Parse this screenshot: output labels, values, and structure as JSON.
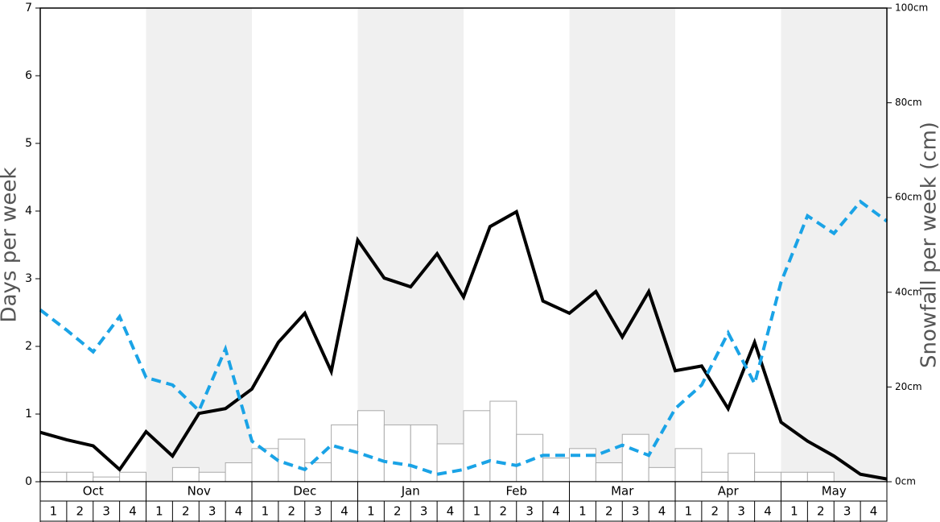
{
  "chart_data": {
    "type": "bar",
    "y_label": "Days per week",
    "y2_label": "Snowfall per week (cm)",
    "months": [
      "Oct",
      "Nov",
      "Dec",
      "Jan",
      "Feb",
      "Mar",
      "Apr",
      "May"
    ],
    "weeks": [
      "1",
      "2",
      "3",
      "4"
    ],
    "shaded_months": [
      false,
      true,
      false,
      true,
      false,
      true,
      false,
      true
    ],
    "ylim": [
      0,
      7
    ],
    "yticks": [
      0,
      1,
      2,
      3,
      4,
      5,
      6,
      7
    ],
    "y2lim": [
      0,
      100
    ],
    "y2ticks": [
      {
        "value": 0,
        "label": "0cm"
      },
      {
        "value": 20,
        "label": "20cm"
      },
      {
        "value": 40,
        "label": "40cm"
      },
      {
        "value": 60,
        "label": "60cm"
      },
      {
        "value": 80,
        "label": "80cm"
      },
      {
        "value": 100,
        "label": "100cm"
      }
    ],
    "series": [
      {
        "type": "bar",
        "axis": "y2",
        "color": "#ffffff",
        "values": [
          2,
          2,
          1,
          2,
          0,
          3,
          2,
          4,
          7,
          9,
          4,
          12,
          15,
          12,
          12,
          8,
          15,
          17,
          10,
          5,
          7,
          4,
          10,
          3,
          7,
          2,
          6,
          2,
          2,
          2,
          0,
          0
        ]
      },
      {
        "type": "line",
        "axis": "y",
        "color": "#000000",
        "dashed": false,
        "values": [
          0.73,
          0.62,
          0.53,
          0.18,
          0.74,
          0.38,
          1.01,
          1.08,
          1.37,
          2.06,
          2.49,
          1.63,
          3.57,
          3.01,
          2.88,
          3.37,
          2.73,
          3.77,
          3.99,
          2.67,
          2.49,
          2.81,
          2.14,
          2.81,
          1.64,
          1.71,
          1.08,
          2.06,
          0.88,
          0.6,
          0.38,
          0.11,
          0.04
        ]
      },
      {
        "type": "line",
        "axis": "y",
        "color": "#1aa3e6",
        "dashed": true,
        "values": [
          2.54,
          2.24,
          1.92,
          2.44,
          1.54,
          1.43,
          1.05,
          1.96,
          0.6,
          0.31,
          0.18,
          0.54,
          0.43,
          0.3,
          0.24,
          0.11,
          0.18,
          0.31,
          0.24,
          0.39,
          0.39,
          0.39,
          0.54,
          0.39,
          1.08,
          1.43,
          2.2,
          1.45,
          2.95,
          3.93,
          3.67,
          4.14,
          3.85
        ]
      }
    ]
  }
}
